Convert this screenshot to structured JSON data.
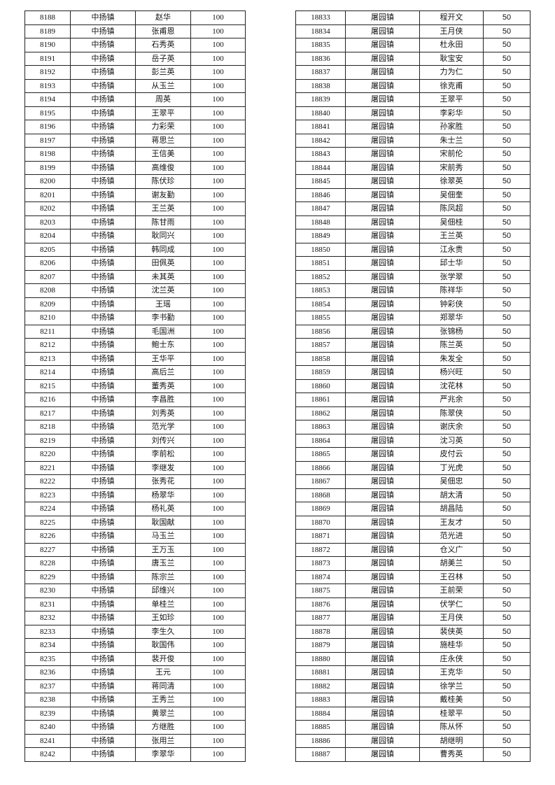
{
  "left_table": {
    "rows": [
      [
        "8188",
        "中扬镇",
        "赵华",
        "100"
      ],
      [
        "8189",
        "中扬镇",
        "张甫恩",
        "100"
      ],
      [
        "8190",
        "中扬镇",
        "石秀英",
        "100"
      ],
      [
        "8191",
        "中扬镇",
        "岳子英",
        "100"
      ],
      [
        "8192",
        "中扬镇",
        "彭兰英",
        "100"
      ],
      [
        "8193",
        "中扬镇",
        "从玉兰",
        "100"
      ],
      [
        "8194",
        "中扬镇",
        "周英",
        "100"
      ],
      [
        "8195",
        "中扬镇",
        "王翠平",
        "100"
      ],
      [
        "8196",
        "中扬镇",
        "力彩荣",
        "100"
      ],
      [
        "8197",
        "中扬镇",
        "蒋思兰",
        "100"
      ],
      [
        "8198",
        "中扬镇",
        "王信美",
        "100"
      ],
      [
        "8199",
        "中扬镇",
        "高维俊",
        "100"
      ],
      [
        "8200",
        "中扬镇",
        "陈伏珍",
        "100"
      ],
      [
        "8201",
        "中扬镇",
        "谢友勤",
        "100"
      ],
      [
        "8202",
        "中扬镇",
        "王兰英",
        "100"
      ],
      [
        "8203",
        "中扬镇",
        "陈甘雨",
        "100"
      ],
      [
        "8204",
        "中扬镇",
        "耿同兴",
        "100"
      ],
      [
        "8205",
        "中扬镇",
        "韩同成",
        "100"
      ],
      [
        "8206",
        "中扬镇",
        "田佩英",
        "100"
      ],
      [
        "8207",
        "中扬镇",
        "未其英",
        "100"
      ],
      [
        "8208",
        "中扬镇",
        "沈兰英",
        "100"
      ],
      [
        "8209",
        "中扬镇",
        "王瑶",
        "100"
      ],
      [
        "8210",
        "中扬镇",
        "李书勤",
        "100"
      ],
      [
        "8211",
        "中扬镇",
        "毛国洲",
        "100"
      ],
      [
        "8212",
        "中扬镇",
        "鲍士东",
        "100"
      ],
      [
        "8213",
        "中扬镇",
        "王华平",
        "100"
      ],
      [
        "8214",
        "中扬镇",
        "高后兰",
        "100"
      ],
      [
        "8215",
        "中扬镇",
        "董秀英",
        "100"
      ],
      [
        "8216",
        "中扬镇",
        "李昌胜",
        "100"
      ],
      [
        "8217",
        "中扬镇",
        "刘秀英",
        "100"
      ],
      [
        "8218",
        "中扬镇",
        "范光学",
        "100"
      ],
      [
        "8219",
        "中扬镇",
        "刘传兴",
        "100"
      ],
      [
        "8220",
        "中扬镇",
        "李前松",
        "100"
      ],
      [
        "8221",
        "中扬镇",
        "李继发",
        "100"
      ],
      [
        "8222",
        "中扬镇",
        "张秀花",
        "100"
      ],
      [
        "8223",
        "中扬镇",
        "杨翠华",
        "100"
      ],
      [
        "8224",
        "中扬镇",
        "杨礼英",
        "100"
      ],
      [
        "8225",
        "中扬镇",
        "耿国献",
        "100"
      ],
      [
        "8226",
        "中扬镇",
        "马玉兰",
        "100"
      ],
      [
        "8227",
        "中扬镇",
        "王万玉",
        "100"
      ],
      [
        "8228",
        "中扬镇",
        "唐玉兰",
        "100"
      ],
      [
        "8229",
        "中扬镇",
        "陈宗兰",
        "100"
      ],
      [
        "8230",
        "中扬镇",
        "邱维兴",
        "100"
      ],
      [
        "8231",
        "中扬镇",
        "单桂兰",
        "100"
      ],
      [
        "8232",
        "中扬镇",
        "王如珍",
        "100"
      ],
      [
        "8233",
        "中扬镇",
        "李生久",
        "100"
      ],
      [
        "8234",
        "中扬镇",
        "耿国伟",
        "100"
      ],
      [
        "8235",
        "中扬镇",
        "裴开俊",
        "100"
      ],
      [
        "8236",
        "中扬镇",
        "王元",
        "100"
      ],
      [
        "8237",
        "中扬镇",
        "蒋同清",
        "100"
      ],
      [
        "8238",
        "中扬镇",
        "王秀兰",
        "100"
      ],
      [
        "8239",
        "中扬镇",
        "黄翠兰",
        "100"
      ],
      [
        "8240",
        "中扬镇",
        "方继胜",
        "100"
      ],
      [
        "8241",
        "中扬镇",
        "张用兰",
        "100"
      ],
      [
        "8242",
        "中扬镇",
        "李翠华",
        "100"
      ]
    ]
  },
  "right_table": {
    "rows": [
      [
        "18833",
        "屠园镇",
        "程开文",
        "50"
      ],
      [
        "18834",
        "屠园镇",
        "王月侠",
        "50"
      ],
      [
        "18835",
        "屠园镇",
        "杜永田",
        "50"
      ],
      [
        "18836",
        "屠园镇",
        "耿宝安",
        "50"
      ],
      [
        "18837",
        "屠园镇",
        "力为仁",
        "50"
      ],
      [
        "18838",
        "屠园镇",
        "徐克甫",
        "50"
      ],
      [
        "18839",
        "屠园镇",
        "王翠平",
        "50"
      ],
      [
        "18840",
        "屠园镇",
        "李彩华",
        "50"
      ],
      [
        "18841",
        "屠园镇",
        "孙家胜",
        "50"
      ],
      [
        "18842",
        "屠园镇",
        "朱士兰",
        "50"
      ],
      [
        "18843",
        "屠园镇",
        "宋前伦",
        "50"
      ],
      [
        "18844",
        "屠园镇",
        "宋前秀",
        "50"
      ],
      [
        "18845",
        "屠园镇",
        "徐翠英",
        "50"
      ],
      [
        "18846",
        "屠园镇",
        "吴佃奎",
        "50"
      ],
      [
        "18847",
        "屠园镇",
        "陈凤超",
        "50"
      ],
      [
        "18848",
        "屠园镇",
        "吴佃桂",
        "50"
      ],
      [
        "18849",
        "屠园镇",
        "王兰英",
        "50"
      ],
      [
        "18850",
        "屠园镇",
        "江永贵",
        "50"
      ],
      [
        "18851",
        "屠园镇",
        "邱士华",
        "50"
      ],
      [
        "18852",
        "屠园镇",
        "张学翠",
        "50"
      ],
      [
        "18853",
        "屠园镇",
        "陈祥华",
        "50"
      ],
      [
        "18854",
        "屠园镇",
        "钟彩侠",
        "50"
      ],
      [
        "18855",
        "屠园镇",
        "郑翠华",
        "50"
      ],
      [
        "18856",
        "屠园镇",
        "张锦杨",
        "50"
      ],
      [
        "18857",
        "屠园镇",
        "陈兰英",
        "50"
      ],
      [
        "18858",
        "屠园镇",
        "朱发全",
        "50"
      ],
      [
        "18859",
        "屠园镇",
        "杨兴旺",
        "50"
      ],
      [
        "18860",
        "屠园镇",
        "沈花林",
        "50"
      ],
      [
        "18861",
        "屠园镇",
        "严兆余",
        "50"
      ],
      [
        "18862",
        "屠园镇",
        "陈翠侠",
        "50"
      ],
      [
        "18863",
        "屠园镇",
        "谢庆余",
        "50"
      ],
      [
        "18864",
        "屠园镇",
        "沈习英",
        "50"
      ],
      [
        "18865",
        "屠园镇",
        "皮付云",
        "50"
      ],
      [
        "18866",
        "屠园镇",
        "丁光虎",
        "50"
      ],
      [
        "18867",
        "屠园镇",
        "吴佃忠",
        "50"
      ],
      [
        "18868",
        "屠园镇",
        "胡太清",
        "50"
      ],
      [
        "18869",
        "屠园镇",
        "胡昌陆",
        "50"
      ],
      [
        "18870",
        "屠园镇",
        "王友才",
        "50"
      ],
      [
        "18871",
        "屠园镇",
        "范光进",
        "50"
      ],
      [
        "18872",
        "屠园镇",
        "仓义广",
        "50"
      ],
      [
        "18873",
        "屠园镇",
        "胡美兰",
        "50"
      ],
      [
        "18874",
        "屠园镇",
        "王召林",
        "50"
      ],
      [
        "18875",
        "屠园镇",
        "王前荣",
        "50"
      ],
      [
        "18876",
        "屠园镇",
        "伏学仁",
        "50"
      ],
      [
        "18877",
        "屠园镇",
        "王月侠",
        "50"
      ],
      [
        "18878",
        "屠园镇",
        "裴侠英",
        "50"
      ],
      [
        "18879",
        "屠园镇",
        "施桂华",
        "50"
      ],
      [
        "18880",
        "屠园镇",
        "庄永侠",
        "50"
      ],
      [
        "18881",
        "屠园镇",
        "王克华",
        "50"
      ],
      [
        "18882",
        "屠园镇",
        "徐学兰",
        "50"
      ],
      [
        "18883",
        "屠园镇",
        "戴桂美",
        "50"
      ],
      [
        "18884",
        "屠园镇",
        "桂翠平",
        "50"
      ],
      [
        "18885",
        "屠园镇",
        "陈从怀",
        "50"
      ],
      [
        "18886",
        "屠园镇",
        "胡继明",
        "50"
      ],
      [
        "18887",
        "屠园镇",
        "曹秀英",
        "50"
      ]
    ]
  }
}
